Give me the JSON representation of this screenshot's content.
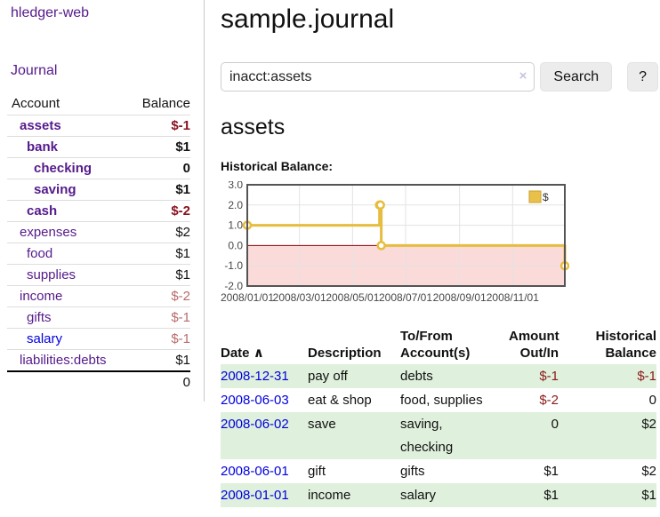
{
  "app": {
    "brand": "hledger-web",
    "nav_journal": "Journal"
  },
  "header": {
    "title": "sample.journal"
  },
  "search": {
    "value": "inacct:assets",
    "clear_icon": "×",
    "button": "Search",
    "help_button": "?"
  },
  "account_page": {
    "heading": "assets",
    "chart_label": "Historical Balance:"
  },
  "colors": {
    "link_purple": "#551a8b",
    "link_blue": "#0000e0",
    "negative_strong": "#8b1220",
    "negative_dim": "#b86b6b",
    "negative_table": "#8b1a1a",
    "row_stripe_green": "#dff0dc",
    "chart_line": "#e6bd3e"
  },
  "sidebar": {
    "table_headers": {
      "account": "Account",
      "balance": "Balance"
    },
    "accounts": [
      {
        "name": "assets",
        "balance": "$-1",
        "indent": 1,
        "bold": true,
        "balance_style": "neg-strong"
      },
      {
        "name": "bank",
        "balance": "$1",
        "indent": 2,
        "bold": true,
        "balance_style": "pos"
      },
      {
        "name": "checking",
        "balance": "0",
        "indent": 3,
        "bold": true,
        "balance_style": "pos"
      },
      {
        "name": "saving",
        "balance": "$1",
        "indent": 3,
        "bold": true,
        "balance_style": "pos"
      },
      {
        "name": "cash",
        "balance": "$-2",
        "indent": 2,
        "bold": true,
        "balance_style": "neg-strong"
      },
      {
        "name": "expenses",
        "balance": "$2",
        "indent": 1,
        "bold": false,
        "balance_style": "pos"
      },
      {
        "name": "food",
        "balance": "$1",
        "indent": 2,
        "bold": false,
        "balance_style": "pos"
      },
      {
        "name": "supplies",
        "balance": "$1",
        "indent": 2,
        "bold": false,
        "balance_style": "pos"
      },
      {
        "name": "income",
        "balance": "$-2",
        "indent": 1,
        "bold": false,
        "balance_style": "neg-dim"
      },
      {
        "name": "gifts",
        "balance": "$-1",
        "indent": 2,
        "bold": false,
        "balance_style": "neg-dim"
      },
      {
        "name": "salary",
        "balance": "$-1",
        "indent": 2,
        "bold": false,
        "balance_style": "neg-dim",
        "link_style": "blue"
      },
      {
        "name": "liabilities:debts",
        "balance": "$1",
        "indent": 1,
        "bold": false,
        "balance_style": "pos"
      }
    ],
    "total": "0"
  },
  "chart_data": {
    "type": "line",
    "step": true,
    "title": "Historical Balance",
    "legend": [
      {
        "label": "$",
        "color": "#e8c04a"
      }
    ],
    "legend_position": "top-right",
    "grid": true,
    "series": [
      {
        "name": "$",
        "color": "#e6bd3e",
        "points": [
          {
            "date": "2008-01-01",
            "value": 1
          },
          {
            "date": "2008-06-01",
            "value": 2
          },
          {
            "date": "2008-06-02",
            "value": 2
          },
          {
            "date": "2008-06-03",
            "value": 0
          },
          {
            "date": "2008-12-31",
            "value": -1
          }
        ]
      }
    ],
    "xlim": [
      "2008-01-01",
      "2008-12-31"
    ],
    "ylim": [
      -2,
      3
    ],
    "yticks": [
      {
        "value": 3,
        "label": "3.0"
      },
      {
        "value": 2,
        "label": "2.0"
      },
      {
        "value": 1,
        "label": "1.0"
      },
      {
        "value": 0,
        "label": "0.0"
      },
      {
        "value": -1,
        "label": "-1.0"
      },
      {
        "value": -2,
        "label": "-2.0"
      }
    ],
    "xticks": [
      {
        "value": "2008-01-01",
        "label": "2008/01/01"
      },
      {
        "value": "2008-03-01",
        "label": "2008/03/01"
      },
      {
        "value": "2008-05-01",
        "label": "2008/05/01"
      },
      {
        "value": "2008-07-01",
        "label": "2008/07/01"
      },
      {
        "value": "2008-09-01",
        "label": "2008/09/01"
      },
      {
        "value": "2008-11-01",
        "label": "2008/11/01"
      }
    ],
    "chart_colors": {
      "negative_region": "#fbdada",
      "zero_line": "#8b0000",
      "grid": "#e3e3e3",
      "border": "#545454",
      "tick_text": "#484848"
    }
  },
  "register": {
    "columns": [
      {
        "id": "date",
        "lines": [
          "Date"
        ],
        "align": "left",
        "sort_indicator": "∧"
      },
      {
        "id": "description",
        "lines": [
          "Description"
        ],
        "align": "left"
      },
      {
        "id": "accounts",
        "lines": [
          "To/From",
          "Account(s)"
        ],
        "align": "left"
      },
      {
        "id": "amount",
        "lines": [
          "Amount",
          "Out/In"
        ],
        "align": "right"
      },
      {
        "id": "balance",
        "lines": [
          "Historical",
          "Balance"
        ],
        "align": "right"
      }
    ],
    "rows": [
      {
        "date": "2008-12-31",
        "description": "pay off",
        "accounts_lines": [
          "debts"
        ],
        "amount": "$-1",
        "amount_style": "neg",
        "balance": "$-1",
        "balance_style": "neg"
      },
      {
        "date": "2008-06-03",
        "description": "eat & shop",
        "accounts_lines": [
          "food, supplies"
        ],
        "amount": "$-2",
        "amount_style": "neg",
        "balance": "0",
        "balance_style": "pos"
      },
      {
        "date": "2008-06-02",
        "description": "save",
        "accounts_lines": [
          "saving,",
          "checking"
        ],
        "amount": "0",
        "amount_style": "pos",
        "balance": "$2",
        "balance_style": "pos"
      },
      {
        "date": "2008-06-01",
        "description": "gift",
        "accounts_lines": [
          "gifts"
        ],
        "amount": "$1",
        "amount_style": "pos",
        "balance": "$2",
        "balance_style": "pos"
      },
      {
        "date": "2008-01-01",
        "description": "income",
        "accounts_lines": [
          "salary"
        ],
        "amount": "$1",
        "amount_style": "pos",
        "balance": "$1",
        "balance_style": "pos"
      }
    ]
  }
}
